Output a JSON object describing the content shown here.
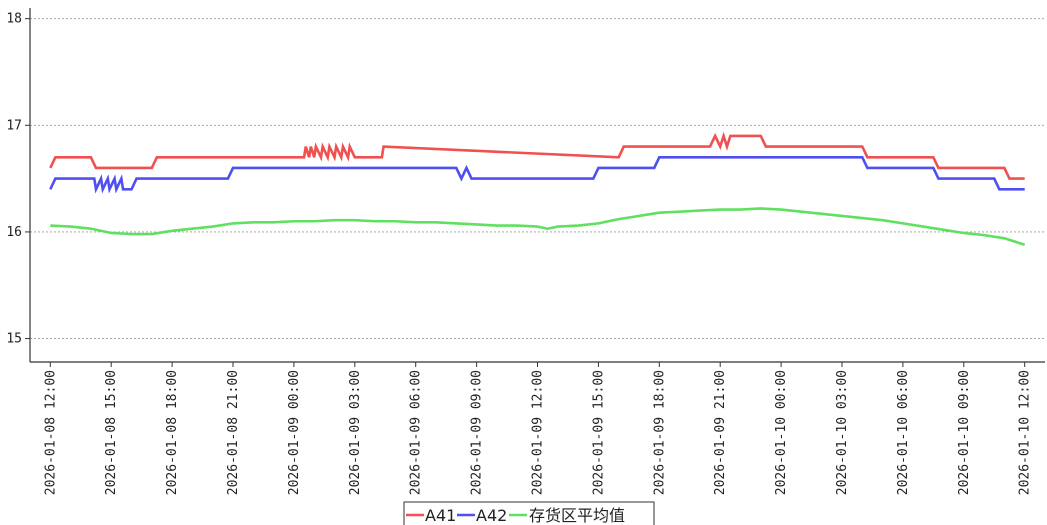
{
  "chart_data": {
    "type": "line",
    "title": "",
    "xlabel": "",
    "ylabel": "",
    "ylim": [
      14.78,
      18.1
    ],
    "xlim": [
      "2026-01-08 11:00",
      "2026-01-10 13:00"
    ],
    "grid": true,
    "legend_position": "bottom-center",
    "y_ticks": [
      "15",
      "16",
      "17",
      "18"
    ],
    "x_ticks": [
      "2026-01-08 12:00",
      "2026-01-08 15:00",
      "2026-01-08 18:00",
      "2026-01-08 21:00",
      "2026-01-09 00:00",
      "2026-01-09 03:00",
      "2026-01-09 06:00",
      "2026-01-09 09:00",
      "2026-01-09 12:00",
      "2026-01-09 15:00",
      "2026-01-09 18:00",
      "2026-01-09 21:00",
      "2026-01-10 00:00",
      "2026-01-10 03:00",
      "2026-01-10 06:00",
      "2026-01-10 09:00",
      "2026-01-10 12:00"
    ],
    "series": [
      {
        "name": "A41",
        "color": "#f05050",
        "x": [
          "2026-01-08 12:00",
          "2026-01-08 12:15",
          "2026-01-08 14:00",
          "2026-01-08 14:15",
          "2026-01-08 17:00",
          "2026-01-08 17:15",
          "2026-01-09 00:30",
          "2026-01-09 00:35",
          "2026-01-09 00:45",
          "2026-01-09 00:50",
          "2026-01-09 01:00",
          "2026-01-09 01:05",
          "2026-01-09 01:20",
          "2026-01-09 01:25",
          "2026-01-09 01:40",
          "2026-01-09 01:45",
          "2026-01-09 02:00",
          "2026-01-09 02:05",
          "2026-01-09 02:20",
          "2026-01-09 02:25",
          "2026-01-09 02:40",
          "2026-01-09 02:45",
          "2026-01-09 03:00",
          "2026-01-09 03:05",
          "2026-01-09 04:20",
          "2026-01-09 04:25",
          "2026-01-09 16:00",
          "2026-01-09 16:15",
          "2026-01-09 20:30",
          "2026-01-09 20:45",
          "2026-01-09 21:00",
          "2026-01-09 21:10",
          "2026-01-09 21:20",
          "2026-01-09 21:30",
          "2026-01-09 23:00",
          "2026-01-09 23:15",
          "2026-01-10 04:00",
          "2026-01-10 04:15",
          "2026-01-10 07:30",
          "2026-01-10 07:45",
          "2026-01-10 11:00",
          "2026-01-10 11:15",
          "2026-01-10 12:00"
        ],
        "values": [
          16.6,
          16.7,
          16.7,
          16.6,
          16.6,
          16.7,
          16.7,
          16.8,
          16.7,
          16.8,
          16.7,
          16.8,
          16.7,
          16.8,
          16.7,
          16.8,
          16.7,
          16.8,
          16.7,
          16.8,
          16.7,
          16.8,
          16.7,
          16.7,
          16.7,
          16.8,
          16.7,
          16.8,
          16.8,
          16.9,
          16.8,
          16.9,
          16.8,
          16.9,
          16.9,
          16.8,
          16.8,
          16.7,
          16.7,
          16.6,
          16.6,
          16.5,
          16.5
        ]
      },
      {
        "name": "A42",
        "color": "#5050f0",
        "x": [
          "2026-01-08 12:00",
          "2026-01-08 12:15",
          "2026-01-08 14:10",
          "2026-01-08 14:15",
          "2026-01-08 14:30",
          "2026-01-08 14:35",
          "2026-01-08 14:50",
          "2026-01-08 14:55",
          "2026-01-08 15:10",
          "2026-01-08 15:15",
          "2026-01-08 15:30",
          "2026-01-08 15:35",
          "2026-01-08 16:00",
          "2026-01-08 16:15",
          "2026-01-08 20:45",
          "2026-01-08 21:00",
          "2026-01-09 08:00",
          "2026-01-09 08:15",
          "2026-01-09 08:30",
          "2026-01-09 08:45",
          "2026-01-09 14:45",
          "2026-01-09 15:00",
          "2026-01-09 17:45",
          "2026-01-09 18:00",
          "2026-01-10 04:00",
          "2026-01-10 04:15",
          "2026-01-10 07:30",
          "2026-01-10 07:45",
          "2026-01-10 10:30",
          "2026-01-10 10:45",
          "2026-01-10 12:00"
        ],
        "values": [
          16.4,
          16.5,
          16.5,
          16.4,
          16.5,
          16.4,
          16.5,
          16.4,
          16.5,
          16.4,
          16.5,
          16.4,
          16.4,
          16.5,
          16.5,
          16.6,
          16.6,
          16.5,
          16.6,
          16.5,
          16.5,
          16.6,
          16.6,
          16.7,
          16.7,
          16.6,
          16.6,
          16.5,
          16.5,
          16.4,
          16.4
        ]
      },
      {
        "name": "存货区平均值",
        "color": "#60e060",
        "x": [
          "2026-01-08 12:00",
          "2026-01-08 13:00",
          "2026-01-08 14:00",
          "2026-01-08 15:00",
          "2026-01-08 16:00",
          "2026-01-08 17:00",
          "2026-01-08 18:00",
          "2026-01-08 19:00",
          "2026-01-08 20:00",
          "2026-01-08 21:00",
          "2026-01-08 22:00",
          "2026-01-08 23:00",
          "2026-01-09 00:00",
          "2026-01-09 01:00",
          "2026-01-09 02:00",
          "2026-01-09 03:00",
          "2026-01-09 04:00",
          "2026-01-09 05:00",
          "2026-01-09 06:00",
          "2026-01-09 07:00",
          "2026-01-09 08:00",
          "2026-01-09 09:00",
          "2026-01-09 10:00",
          "2026-01-09 11:00",
          "2026-01-09 12:00",
          "2026-01-09 12:30",
          "2026-01-09 13:00",
          "2026-01-09 14:00",
          "2026-01-09 15:00",
          "2026-01-09 16:00",
          "2026-01-09 17:00",
          "2026-01-09 18:00",
          "2026-01-09 19:00",
          "2026-01-09 20:00",
          "2026-01-09 21:00",
          "2026-01-09 22:00",
          "2026-01-09 23:00",
          "2026-01-10 00:00",
          "2026-01-10 01:00",
          "2026-01-10 02:00",
          "2026-01-10 03:00",
          "2026-01-10 04:00",
          "2026-01-10 05:00",
          "2026-01-10 06:00",
          "2026-01-10 07:00",
          "2026-01-10 08:00",
          "2026-01-10 09:00",
          "2026-01-10 10:00",
          "2026-01-10 11:00",
          "2026-01-10 12:00"
        ],
        "values": [
          16.06,
          16.05,
          16.03,
          15.99,
          15.98,
          15.98,
          16.01,
          16.03,
          16.05,
          16.08,
          16.09,
          16.09,
          16.1,
          16.1,
          16.11,
          16.11,
          16.1,
          16.1,
          16.09,
          16.09,
          16.08,
          16.07,
          16.06,
          16.06,
          16.05,
          16.03,
          16.05,
          16.06,
          16.08,
          16.12,
          16.15,
          16.18,
          16.19,
          16.2,
          16.21,
          16.21,
          16.22,
          16.21,
          16.19,
          16.17,
          16.15,
          16.13,
          16.11,
          16.08,
          16.05,
          16.02,
          15.99,
          15.97,
          15.94,
          15.88
        ]
      }
    ]
  }
}
